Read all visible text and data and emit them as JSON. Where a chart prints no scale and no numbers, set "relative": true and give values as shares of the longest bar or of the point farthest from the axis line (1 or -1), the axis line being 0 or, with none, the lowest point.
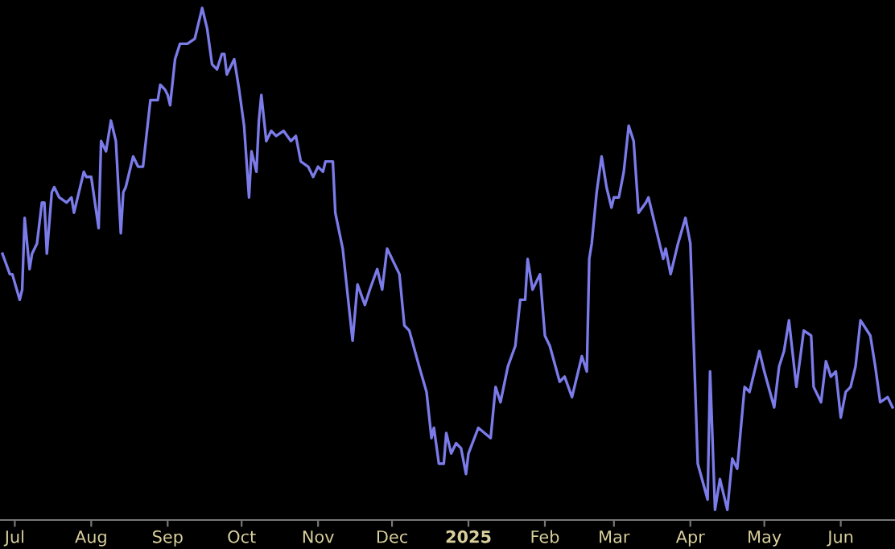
{
  "chart_data": {
    "type": "line",
    "relative": true,
    "xlim": [
      "2024-06-25",
      "2025-06-23"
    ],
    "xticks": [
      {
        "value": "2024-07-01",
        "label": "Jul"
      },
      {
        "value": "2024-08-01",
        "label": "Aug"
      },
      {
        "value": "2024-09-01",
        "label": "Sep"
      },
      {
        "value": "2024-10-01",
        "label": "Oct"
      },
      {
        "value": "2024-11-01",
        "label": "Nov"
      },
      {
        "value": "2024-12-01",
        "label": "Dec"
      },
      {
        "value": "2025-01-01",
        "label": "2025"
      },
      {
        "value": "2025-02-01",
        "label": "Feb"
      },
      {
        "value": "2025-03-01",
        "label": "Mar"
      },
      {
        "value": "2025-04-01",
        "label": "Apr"
      },
      {
        "value": "2025-05-01",
        "label": "May"
      },
      {
        "value": "2025-06-01",
        "label": "Jun"
      }
    ],
    "marker": "none",
    "line_style": "solid",
    "x": [
      "2024-06-26",
      "2024-06-29",
      "2024-06-30",
      "2024-07-03",
      "2024-07-04",
      "2024-07-05",
      "2024-07-07",
      "2024-07-08",
      "2024-07-10",
      "2024-07-12",
      "2024-07-13",
      "2024-07-14",
      "2024-07-16",
      "2024-07-17",
      "2024-07-19",
      "2024-07-22",
      "2024-07-24",
      "2024-07-25",
      "2024-07-29",
      "2024-07-30",
      "2024-08-01",
      "2024-08-04",
      "2024-08-05",
      "2024-08-07",
      "2024-08-09",
      "2024-08-11",
      "2024-08-13",
      "2024-08-14",
      "2024-08-15",
      "2024-08-18",
      "2024-08-20",
      "2024-08-22",
      "2024-08-25",
      "2024-08-28",
      "2024-08-29",
      "2024-08-31",
      "2024-09-01",
      "2024-09-02",
      "2024-09-04",
      "2024-09-06",
      "2024-09-09",
      "2024-09-12",
      "2024-09-15",
      "2024-09-17",
      "2024-09-19",
      "2024-09-21",
      "2024-09-23",
      "2024-09-24",
      "2024-09-25",
      "2024-09-28",
      "2024-09-30",
      "2024-10-02",
      "2024-10-04",
      "2024-10-05",
      "2024-10-07",
      "2024-10-08",
      "2024-10-09",
      "2024-10-11",
      "2024-10-13",
      "2024-10-15",
      "2024-10-18",
      "2024-10-21",
      "2024-10-23",
      "2024-10-25",
      "2024-10-28",
      "2024-10-30",
      "2024-11-01",
      "2024-11-03",
      "2024-11-04",
      "2024-11-07",
      "2024-11-08",
      "2024-11-11",
      "2024-11-15",
      "2024-11-17",
      "2024-11-20",
      "2024-11-22",
      "2024-11-25",
      "2024-11-27",
      "2024-11-29",
      "2024-12-04",
      "2024-12-06",
      "2024-12-08",
      "2024-12-12",
      "2024-12-15",
      "2024-12-17",
      "2024-12-18",
      "2024-12-20",
      "2024-12-22",
      "2024-12-23",
      "2024-12-25",
      "2024-12-27",
      "2024-12-29",
      "2024-12-31",
      "2025-01-01",
      "2025-01-05",
      "2025-01-10",
      "2025-01-12",
      "2025-01-14",
      "2025-01-17",
      "2025-01-20",
      "2025-01-22",
      "2025-01-24",
      "2025-01-25",
      "2025-01-27",
      "2025-01-30",
      "2025-02-01",
      "2025-02-03",
      "2025-02-07",
      "2025-02-09",
      "2025-02-12",
      "2025-02-16",
      "2025-02-18",
      "2025-02-19",
      "2025-02-20",
      "2025-02-22",
      "2025-02-24",
      "2025-02-26",
      "2025-02-28",
      "2025-03-01",
      "2025-03-03",
      "2025-03-05",
      "2025-03-07",
      "2025-03-09",
      "2025-03-11",
      "2025-03-14",
      "2025-03-15",
      "2025-03-21",
      "2025-03-22",
      "2025-03-24",
      "2025-03-27",
      "2025-03-30",
      "2025-04-01",
      "2025-04-04",
      "2025-04-08",
      "2025-04-09",
      "2025-04-11",
      "2025-04-13",
      "2025-04-16",
      "2025-04-18",
      "2025-04-20",
      "2025-04-23",
      "2025-04-25",
      "2025-04-29",
      "2025-05-01",
      "2025-05-05",
      "2025-05-07",
      "2025-05-09",
      "2025-05-11",
      "2025-05-14",
      "2025-05-17",
      "2025-05-20",
      "2025-05-21",
      "2025-05-24",
      "2025-05-26",
      "2025-05-28",
      "2025-05-30",
      "2025-06-01",
      "2025-06-03",
      "2025-06-05",
      "2025-06-07",
      "2025-06-09",
      "2025-06-13",
      "2025-06-15",
      "2025-06-17",
      "2025-06-20",
      "2025-06-22"
    ],
    "series": [
      {
        "color": "#7b7bea",
        "values": [
          0.52,
          0.48,
          0.48,
          0.43,
          0.45,
          0.59,
          0.49,
          0.52,
          0.54,
          0.62,
          0.62,
          0.52,
          0.64,
          0.65,
          0.63,
          0.62,
          0.63,
          0.6,
          0.68,
          0.67,
          0.67,
          0.57,
          0.74,
          0.72,
          0.78,
          0.74,
          0.56,
          0.64,
          0.65,
          0.71,
          0.69,
          0.69,
          0.82,
          0.82,
          0.85,
          0.84,
          0.83,
          0.81,
          0.9,
          0.93,
          0.93,
          0.94,
          1.0,
          0.96,
          0.89,
          0.88,
          0.91,
          0.91,
          0.87,
          0.9,
          0.84,
          0.77,
          0.63,
          0.72,
          0.68,
          0.78,
          0.83,
          0.74,
          0.76,
          0.75,
          0.76,
          0.74,
          0.75,
          0.7,
          0.69,
          0.67,
          0.69,
          0.68,
          0.7,
          0.7,
          0.6,
          0.53,
          0.35,
          0.46,
          0.42,
          0.45,
          0.49,
          0.45,
          0.53,
          0.48,
          0.38,
          0.37,
          0.3,
          0.25,
          0.16,
          0.18,
          0.11,
          0.11,
          0.17,
          0.13,
          0.15,
          0.14,
          0.09,
          0.13,
          0.18,
          0.16,
          0.26,
          0.23,
          0.3,
          0.34,
          0.43,
          0.43,
          0.51,
          0.45,
          0.48,
          0.36,
          0.34,
          0.27,
          0.28,
          0.24,
          0.32,
          0.29,
          0.51,
          0.54,
          0.64,
          0.71,
          0.65,
          0.61,
          0.63,
          0.63,
          0.68,
          0.77,
          0.74,
          0.6,
          0.62,
          0.63,
          0.51,
          0.53,
          0.48,
          0.54,
          0.59,
          0.54,
          0.11,
          0.04,
          0.29,
          0.02,
          0.08,
          0.02,
          0.12,
          0.1,
          0.26,
          0.25,
          0.33,
          0.29,
          0.22,
          0.3,
          0.33,
          0.39,
          0.26,
          0.37,
          0.36,
          0.26,
          0.23,
          0.31,
          0.28,
          0.29,
          0.2,
          0.25,
          0.26,
          0.3,
          0.39,
          0.36,
          0.3,
          0.23,
          0.24,
          0.22
        ]
      }
    ]
  }
}
